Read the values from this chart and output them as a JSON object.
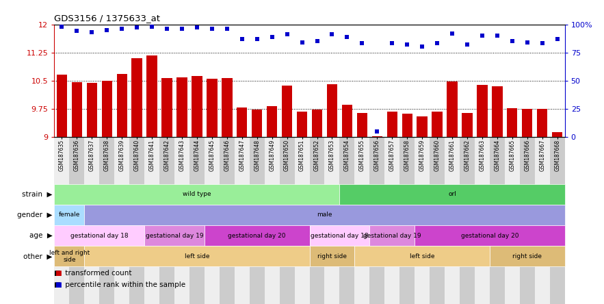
{
  "title": "GDS3156 / 1375633_at",
  "samples": [
    "GSM187635",
    "GSM187636",
    "GSM187637",
    "GSM187638",
    "GSM187639",
    "GSM187640",
    "GSM187641",
    "GSM187642",
    "GSM187643",
    "GSM187644",
    "GSM187645",
    "GSM187646",
    "GSM187647",
    "GSM187648",
    "GSM187649",
    "GSM187650",
    "GSM187651",
    "GSM187652",
    "GSM187653",
    "GSM187654",
    "GSM187655",
    "GSM187656",
    "GSM187657",
    "GSM187658",
    "GSM187659",
    "GSM187660",
    "GSM187661",
    "GSM187662",
    "GSM187663",
    "GSM187664",
    "GSM187665",
    "GSM187666",
    "GSM187667",
    "GSM187668"
  ],
  "bar_values": [
    10.65,
    10.46,
    10.44,
    10.5,
    10.67,
    11.1,
    11.17,
    10.57,
    10.58,
    10.62,
    10.55,
    10.57,
    9.78,
    9.73,
    9.82,
    10.36,
    9.67,
    9.72,
    10.4,
    9.85,
    9.63,
    9.02,
    9.67,
    9.62,
    9.55,
    9.67,
    10.47,
    9.63,
    10.39,
    10.35,
    9.76,
    9.75,
    9.74,
    9.12
  ],
  "percentile_values": [
    98,
    94,
    93,
    95,
    96,
    97,
    98,
    96,
    96,
    97,
    96,
    96,
    87,
    87,
    89,
    91,
    84,
    85,
    91,
    89,
    83,
    5,
    83,
    82,
    80,
    83,
    92,
    82,
    90,
    90,
    85,
    84,
    83,
    87
  ],
  "bar_color": "#cc0000",
  "dot_color": "#0000cc",
  "ylim": [
    9,
    12
  ],
  "yticks": [
    9,
    9.75,
    10.5,
    11.25,
    12
  ],
  "y2lim": [
    0,
    100
  ],
  "y2ticks": [
    0,
    25,
    50,
    75,
    100
  ],
  "grid_lines": [
    9.75,
    10.5,
    11.25
  ],
  "annotation_rows": [
    {
      "label": "strain",
      "segments": [
        {
          "start": 0,
          "end": 19,
          "text": "wild type",
          "color": "#99ee99"
        },
        {
          "start": 19,
          "end": 34,
          "text": "orl",
          "color": "#55cc66"
        }
      ]
    },
    {
      "label": "gender",
      "segments": [
        {
          "start": 0,
          "end": 2,
          "text": "female",
          "color": "#aaddff"
        },
        {
          "start": 2,
          "end": 34,
          "text": "male",
          "color": "#9999dd"
        }
      ]
    },
    {
      "label": "age",
      "segments": [
        {
          "start": 0,
          "end": 6,
          "text": "gestational day 18",
          "color": "#ffccff"
        },
        {
          "start": 6,
          "end": 10,
          "text": "gestational day 19",
          "color": "#dd88dd"
        },
        {
          "start": 10,
          "end": 17,
          "text": "gestational day 20",
          "color": "#cc44cc"
        },
        {
          "start": 17,
          "end": 21,
          "text": "gestational day 18",
          "color": "#ffccff"
        },
        {
          "start": 21,
          "end": 24,
          "text": "gestational day 19",
          "color": "#dd88dd"
        },
        {
          "start": 24,
          "end": 34,
          "text": "gestational day 20",
          "color": "#cc44cc"
        }
      ]
    },
    {
      "label": "other",
      "segments": [
        {
          "start": 0,
          "end": 2,
          "text": "left and right\nside",
          "color": "#ddbb77"
        },
        {
          "start": 2,
          "end": 17,
          "text": "left side",
          "color": "#eecc88"
        },
        {
          "start": 17,
          "end": 20,
          "text": "right side",
          "color": "#ddbb77"
        },
        {
          "start": 20,
          "end": 29,
          "text": "left side",
          "color": "#eecc88"
        },
        {
          "start": 29,
          "end": 34,
          "text": "right side",
          "color": "#ddbb77"
        }
      ]
    }
  ]
}
